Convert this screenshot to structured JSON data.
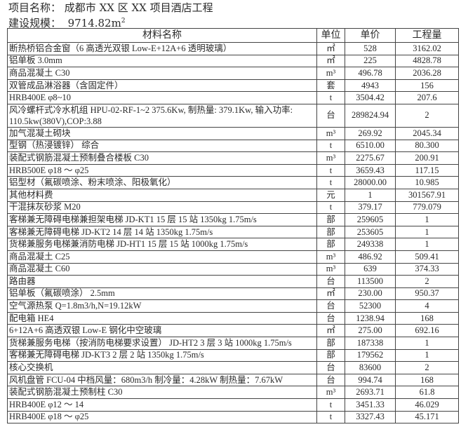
{
  "header": {
    "project_label": "项目名称：",
    "project_name": "成都市 XX 区 XX 项目酒店工程",
    "scale_label": "建设规模：",
    "scale_value": "9714.82m",
    "scale_unit_sup": "2"
  },
  "table": {
    "columns": [
      "材料名称",
      "单位",
      "单价",
      "工程量"
    ],
    "rows": [
      [
        "断热桥铝合金窗（6 高透光双银 Low-E+12A+6 透明玻璃）",
        "㎡",
        "528",
        "3162.02"
      ],
      [
        "铝单板 3.0mm",
        "㎡",
        "225",
        "4828.78"
      ],
      [
        "商品混凝土 C30",
        "m³",
        "496.78",
        "2036.28"
      ],
      [
        "双管成品淋浴器（含固定件）",
        "套",
        "4943",
        "156"
      ],
      [
        "HRB400E φ8~10",
        "t",
        "3504.42",
        "207.6"
      ],
      [
        "风冷螺杆式冷水机组 HPU-02-RF-1~2 375.6Kw, 制热量: 379.1Kw, 输入功率: 110.5kw(380V),COP:3.88",
        "台",
        "289824.94",
        "2"
      ],
      [
        "加气混凝土砌块",
        "m³",
        "269.92",
        "2045.34"
      ],
      [
        "型钢（热浸镀锌） 综合",
        "t",
        "6510.00",
        "80.300"
      ],
      [
        "装配式钢筋混凝土预制叠合楼板 C30",
        "m³",
        "2275.67",
        "200.91"
      ],
      [
        "HRB500E φ18 ～ φ25",
        "t",
        "3659.43",
        "117.15"
      ],
      [
        "铝型材（氟碳喷涂、粉末喷涂、阳极氧化）",
        "t",
        "28000.00",
        "10.985"
      ],
      [
        "其他材料费",
        "元",
        "1",
        "301567.91"
      ],
      [
        "干混抹灰砂浆 M20",
        "t",
        "379.17",
        "779.079"
      ],
      [
        "客梯兼无障碍电梯兼担架电梯 JD-KT1 15 层 15 站 1350kg 1.75m/s",
        "部",
        "259605",
        "1"
      ],
      [
        "客梯兼无障碍电梯 JD-KT2 14 层 14 站 1350kg 1.75m/s",
        "部",
        "253605",
        "1"
      ],
      [
        "货梯兼服务电梯兼消防电梯 JD-HT1 15 层 15 站 1000kg 1.75m/s",
        "部",
        "249338",
        "1"
      ],
      [
        "商品混凝土 C25",
        "m³",
        "486.92",
        "509.41"
      ],
      [
        "商品混凝土 C60",
        "m³",
        "639",
        "374.33"
      ],
      [
        "路由器",
        "台",
        "113500",
        "2"
      ],
      [
        "铝单板（氟碳喷涂） 2.5mm",
        "㎡",
        "230.00",
        "950.37"
      ],
      [
        "空气源热泵 Q=1.8m3/h,N=19.12kW",
        "台",
        "52300",
        "4"
      ],
      [
        "配电箱 HE4",
        "台",
        "1238.94",
        "168"
      ],
      [
        "6+12A+6 高透双银 Low-E 钢化中空玻璃",
        "㎡",
        "275.00",
        "692.16"
      ],
      [
        "货梯兼服务电梯（按消防电梯要求设置） JD-HT2 3 层 3 站 1000kg 1.75m/s",
        "部",
        "187338",
        "1"
      ],
      [
        "客梯兼无障碍电梯 JD-KT3 2 层 2 站 1350kg 1.75m/s",
        "部",
        "179562",
        "1"
      ],
      [
        "核心交换机",
        "台",
        "83600",
        "2"
      ],
      [
        "风机盘管 FCU-04 中档风量：680m3/h 制冷量：4.28kW 制热量：7.67kW",
        "台",
        "994.74",
        "168"
      ],
      [
        "装配式钢筋混凝土预制柱 C30",
        "m³",
        "2693.71",
        "61.8"
      ],
      [
        "HRB400E φ12 ～ 14",
        "t",
        "3451.33",
        "46.029"
      ],
      [
        "HRB400E φ18 ～ φ25",
        "t",
        "3327.43",
        "45.171"
      ]
    ]
  }
}
